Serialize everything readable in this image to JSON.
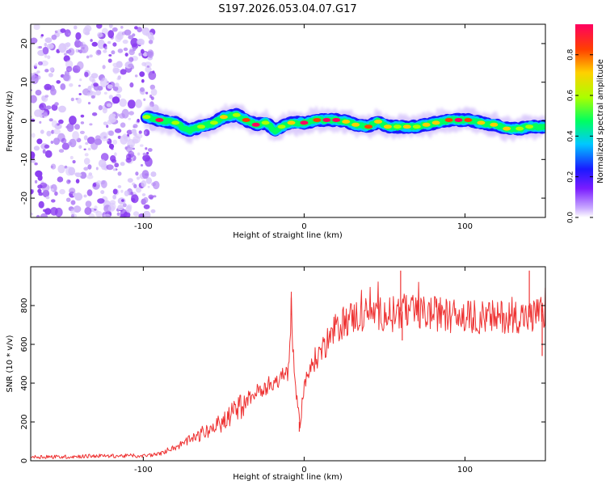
{
  "title": "S197.2026.053.04.07.G17",
  "spectrogram": {
    "xlabel": "Height of straight line (km)",
    "ylabel": "Frequency (Hz)",
    "xlim": [
      -170,
      150
    ],
    "ylim": [
      -25,
      25
    ],
    "xticks": [
      -100,
      0,
      100
    ],
    "yticks": [
      -20,
      -10,
      0,
      10,
      20
    ],
    "colorbar": {
      "label": "Normalized spectral amplitude",
      "ticks": [
        0.0,
        0.2,
        0.4,
        0.6,
        0.8
      ],
      "range": [
        0,
        0.95
      ]
    },
    "chart_data": {
      "type": "heatmap",
      "title": "S197.2026.053.04.07.G17",
      "description_kind": "spectrogram ridge",
      "ridge": {
        "x": [
          -98,
          -90,
          -80,
          -72,
          -64,
          -56,
          -50,
          -42,
          -36,
          -30,
          -24,
          -18,
          -14,
          -8,
          0,
          8,
          14,
          20,
          26,
          32,
          40,
          46,
          52,
          58,
          64,
          70,
          76,
          82,
          90,
          96,
          102,
          110,
          118,
          126,
          134,
          140,
          150
        ],
        "freq": [
          1.0,
          0.2,
          -0.5,
          -2.5,
          -1.5,
          -0.5,
          1.0,
          1.5,
          0.2,
          -1.0,
          -0.5,
          -2.5,
          -1.5,
          -0.5,
          -0.5,
          0.2,
          0.2,
          0.2,
          -0.2,
          -1.0,
          -1.5,
          -0.2,
          -1.5,
          -1.5,
          -1.5,
          -1.5,
          -1.0,
          -0.5,
          0.2,
          0.2,
          0.2,
          -0.5,
          -1.0,
          -2.0,
          -2.0,
          -1.5,
          -1.5
        ],
        "peak_amplitude": [
          0.55,
          0.9,
          0.6,
          0.5,
          0.55,
          0.6,
          0.65,
          0.6,
          0.8,
          0.9,
          0.55,
          0.5,
          0.55,
          0.75,
          0.9,
          0.85,
          0.9,
          0.9,
          0.7,
          0.65,
          0.8,
          0.75,
          0.7,
          0.6,
          0.65,
          0.6,
          0.65,
          0.75,
          0.8,
          0.9,
          0.85,
          0.7,
          0.75,
          0.7,
          0.6,
          0.55,
          0.5
        ]
      },
      "noise_region_x": [
        -170,
        -98
      ]
    }
  },
  "snr": {
    "xlabel": "Height of straight line (km)",
    "ylabel": "SNR (10 * v/v)",
    "xlim": [
      -170,
      150
    ],
    "ylim": [
      0,
      1000
    ],
    "xticks": [
      -100,
      0,
      100
    ],
    "yticks": [
      0,
      200,
      400,
      600,
      800
    ],
    "chart_data": {
      "type": "line",
      "series": [
        {
          "name": "SNR",
          "color": "#ee3333",
          "x": [
            -170,
            -150,
            -130,
            -110,
            -100,
            -90,
            -85,
            -80,
            -75,
            -70,
            -65,
            -60,
            -55,
            -50,
            -45,
            -40,
            -35,
            -30,
            -25,
            -20,
            -15,
            -10,
            -8,
            -5,
            -3,
            0,
            5,
            10,
            15,
            20,
            25,
            30,
            40,
            50,
            60,
            70,
            80,
            90,
            100,
            110,
            120,
            130,
            140,
            150
          ],
          "y": [
            20,
            20,
            25,
            25,
            25,
            35,
            50,
            70,
            90,
            110,
            130,
            150,
            180,
            200,
            240,
            280,
            320,
            350,
            380,
            400,
            420,
            450,
            750,
            300,
            200,
            380,
            500,
            560,
            620,
            680,
            720,
            740,
            760,
            760,
            770,
            760,
            760,
            750,
            740,
            740,
            740,
            750,
            740,
            760
          ],
          "spikes": [
            {
              "x": -8,
              "y": 840
            },
            {
              "x": 60,
              "y": 980
            },
            {
              "x": 140,
              "y": 980
            },
            {
              "x": 61,
              "y": 620
            },
            {
              "x": 148,
              "y": 540
            },
            {
              "x": -3,
              "y": 150
            }
          ]
        }
      ]
    }
  }
}
